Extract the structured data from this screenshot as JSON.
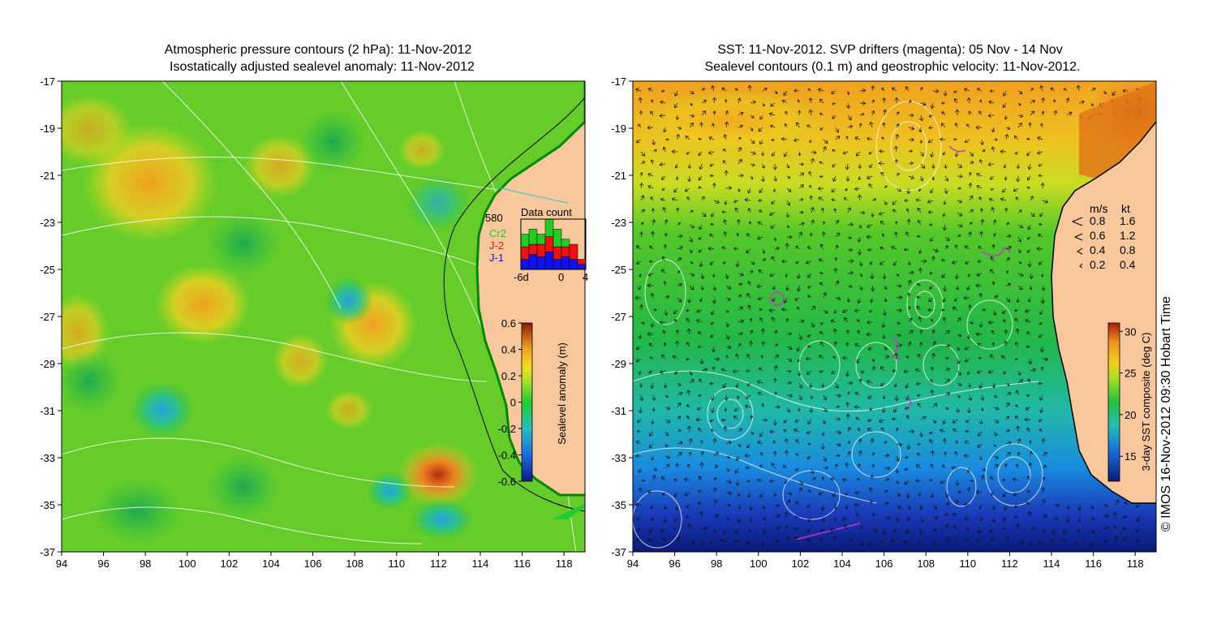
{
  "left_map": {
    "title_line1": "Atmospheric pressure contours (2 hPa): 11-Nov-2012",
    "title_line2": "Isostatically adjusted sealevel anomaly: 11-Nov-2012",
    "x_ticks": [
      "94",
      "96",
      "98",
      "100",
      "102",
      "104",
      "106",
      "108",
      "110",
      "112",
      "114",
      "116",
      "118"
    ],
    "y_ticks": [
      "-17",
      "-19",
      "-21",
      "-23",
      "-25",
      "-27",
      "-29",
      "-31",
      "-33",
      "-35",
      "-37"
    ],
    "colorbar": {
      "label": "Sealevel anomaly (m)",
      "ticks": [
        "0.6",
        "0.4",
        "0.2",
        "0",
        "-0.2",
        "-0.4",
        "-0.6"
      ],
      "range": [
        -0.6,
        0.6
      ]
    },
    "inset": {
      "title": "Data count",
      "max_label": "580",
      "x_labels": [
        "-6d",
        "0",
        "4"
      ],
      "legend": [
        {
          "label": "Cr2",
          "color": "#22cc22"
        },
        {
          "label": "J-2",
          "color": "#ee1111"
        },
        {
          "label": "J-1",
          "color": "#1111ee"
        }
      ],
      "bars": [
        {
          "blue": 0.2,
          "red": 0.25,
          "green": 0.25
        },
        {
          "blue": 0.3,
          "red": 0.2,
          "green": 0.3
        },
        {
          "blue": 0.25,
          "red": 0.25,
          "green": 0.2
        },
        {
          "blue": 0.35,
          "red": 0.3,
          "green": 0.35
        },
        {
          "blue": 0.2,
          "red": 0.25,
          "green": 0.35
        },
        {
          "blue": 0.25,
          "red": 0.2,
          "green": 0.15
        },
        {
          "blue": 0.2,
          "red": 0.3,
          "green": 0.0
        },
        {
          "blue": 0.1,
          "red": 0.1,
          "green": 0.0
        }
      ]
    }
  },
  "right_map": {
    "title_line1": "SST: 11-Nov-2012. SVP drifters (magenta): 05 Nov - 14 Nov",
    "title_line2": "Sealevel contours (0.1 m) and geostrophic velocity: 11-Nov-2012.",
    "x_ticks": [
      "94",
      "96",
      "98",
      "100",
      "102",
      "104",
      "106",
      "108",
      "110",
      "112",
      "114",
      "116",
      "118"
    ],
    "y_ticks": [
      "-17",
      "-19",
      "-21",
      "-23",
      "-25",
      "-27",
      "-29",
      "-31",
      "-33",
      "-35",
      "-37"
    ],
    "colorbar": {
      "label": "3-day SST composite (deg C)",
      "ticks": [
        "30",
        "25",
        "20",
        "15"
      ],
      "range": [
        12,
        31
      ]
    },
    "velocity_legend": {
      "header_ms": "m/s",
      "header_kt": "kt",
      "rows": [
        {
          "ms": "0.8",
          "kt": "1.6"
        },
        {
          "ms": "0.6",
          "kt": "1.2"
        },
        {
          "ms": "0.4",
          "kt": "0.8"
        },
        {
          "ms": "0.2",
          "kt": "0.4"
        }
      ]
    }
  },
  "credit": "© IMOS 16-Nov-2012 09:30 Hobart Time",
  "colors": {
    "land": "#f8c89c",
    "contour": "#ffffff",
    "coast": "#000000",
    "drifter": "#cc33cc"
  }
}
